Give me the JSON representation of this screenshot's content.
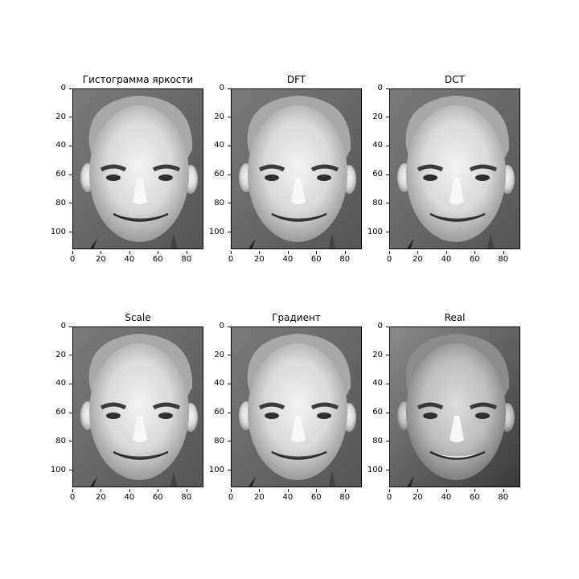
{
  "figure": {
    "panels": [
      {
        "title": "Гистограмма яркости",
        "variant": "processed"
      },
      {
        "title": "DFT",
        "variant": "processed"
      },
      {
        "title": "DCT",
        "variant": "processed"
      },
      {
        "title": "Scale",
        "variant": "processed"
      },
      {
        "title": "Градиент",
        "variant": "processed"
      },
      {
        "title": "Real",
        "variant": "real"
      }
    ],
    "y_ticks": [
      "0",
      "20",
      "40",
      "60",
      "80",
      "100"
    ],
    "x_ticks": [
      "0",
      "20",
      "40",
      "60",
      "80"
    ]
  }
}
